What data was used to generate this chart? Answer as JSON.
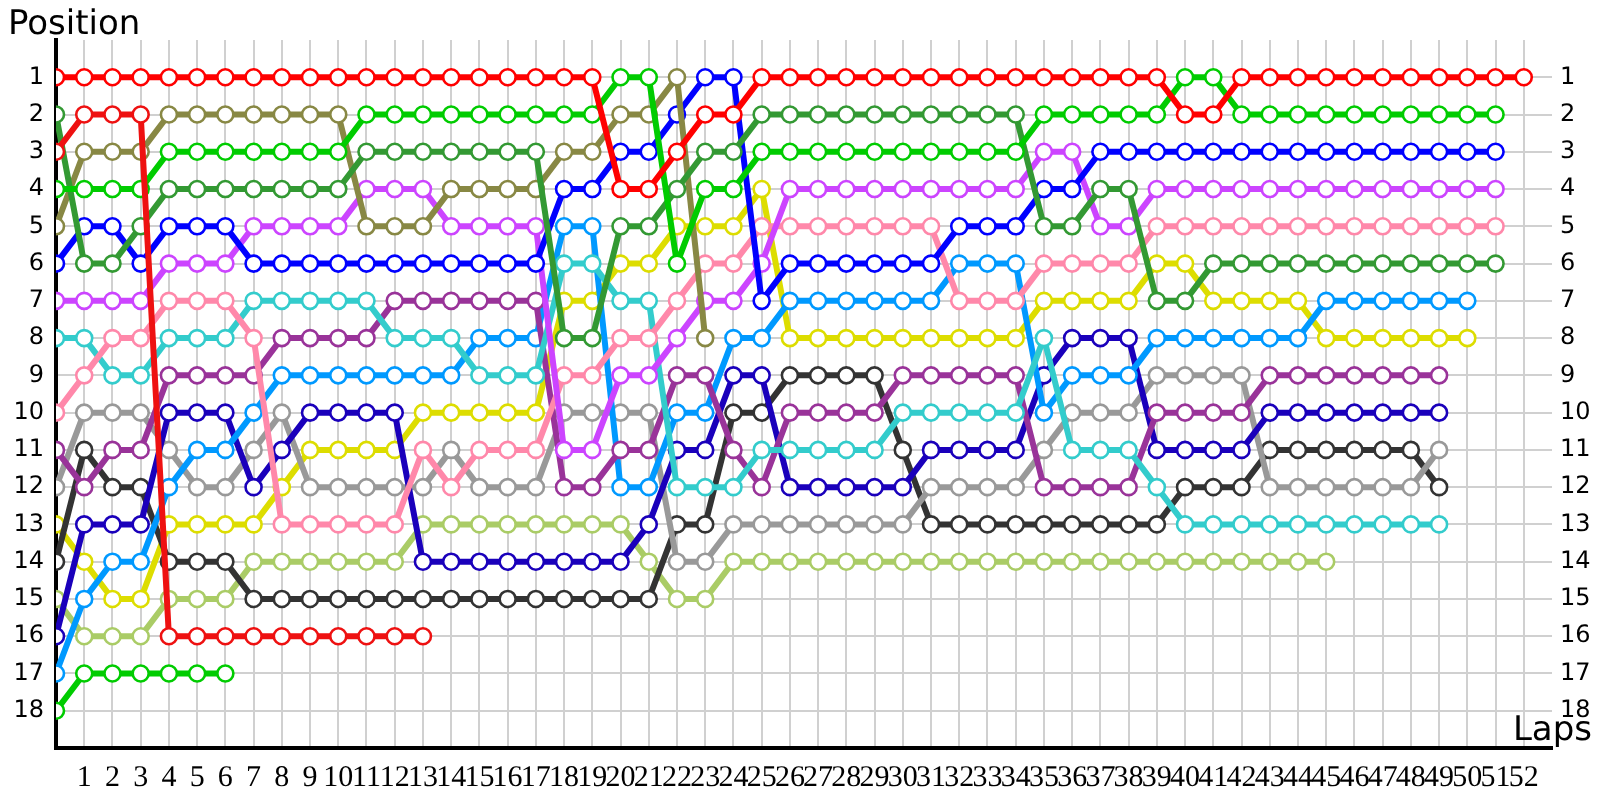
{
  "chart_data": {
    "type": "line",
    "xlabel": "Laps",
    "ylabel": "Position",
    "x": [
      0,
      1,
      2,
      3,
      4,
      5,
      6,
      7,
      8,
      9,
      10,
      11,
      12,
      13,
      14,
      15,
      16,
      17,
      18,
      19,
      20,
      21,
      22,
      23,
      24,
      25,
      26,
      27,
      28,
      29,
      30,
      31,
      32,
      33,
      34,
      35,
      36,
      37,
      38,
      39,
      40,
      41,
      42,
      43,
      44,
      45,
      46,
      47,
      48,
      49,
      50,
      51,
      52
    ],
    "xlim": [
      0,
      53
    ],
    "xticks": [
      1,
      2,
      3,
      4,
      5,
      6,
      7,
      8,
      9,
      10,
      11,
      12,
      13,
      14,
      15,
      16,
      17,
      18,
      19,
      20,
      21,
      22,
      23,
      24,
      25,
      26,
      27,
      28,
      29,
      30,
      31,
      32,
      33,
      34,
      35,
      36,
      37,
      38,
      39,
      40,
      41,
      42,
      43,
      44,
      45,
      46,
      47,
      48,
      49,
      50,
      51,
      52
    ],
    "ylim": [
      19,
      0
    ],
    "yticks": [
      1,
      2,
      3,
      4,
      5,
      6,
      7,
      8,
      9,
      10,
      11,
      12,
      13,
      14,
      15,
      16,
      17,
      18
    ],
    "y2lim": [
      19,
      0
    ],
    "y2ticks": [
      1,
      2,
      3,
      4,
      5,
      6,
      7,
      8,
      9,
      10,
      11,
      12,
      13,
      14,
      15,
      16,
      17,
      18
    ],
    "grid": true,
    "legend": false,
    "marker": "circle",
    "line_style": "solid",
    "series": [
      {
        "color": "#ff0000",
        "values": [
          1,
          1,
          1,
          1,
          1,
          1,
          1,
          1,
          1,
          1,
          1,
          1,
          1,
          1,
          1,
          1,
          1,
          1,
          1,
          1,
          4,
          4,
          3,
          2,
          2,
          1,
          1,
          1,
          1,
          1,
          1,
          1,
          1,
          1,
          1,
          1,
          1,
          1,
          1,
          1,
          2,
          2,
          1,
          1,
          1,
          1,
          1,
          1,
          1,
          1,
          1,
          1,
          1
        ]
      },
      {
        "color": "#ee1111",
        "values": [
          3,
          2,
          2,
          2,
          16,
          16,
          16,
          16,
          16,
          16,
          16,
          16,
          16,
          16,
          null,
          null,
          null,
          null,
          null,
          null,
          null,
          null,
          null,
          null,
          null,
          null,
          null,
          null,
          null,
          null,
          null,
          null,
          null,
          null,
          null,
          null,
          null,
          null,
          null,
          null,
          null,
          null,
          null,
          null,
          null,
          null,
          null,
          null,
          null,
          null,
          null,
          null,
          null
        ]
      },
      {
        "color": "#00cc00",
        "values": [
          4,
          4,
          4,
          4,
          3,
          3,
          3,
          3,
          3,
          3,
          3,
          2,
          2,
          2,
          2,
          2,
          2,
          2,
          2,
          2,
          1,
          1,
          6,
          4,
          4,
          3,
          3,
          3,
          3,
          3,
          3,
          3,
          3,
          3,
          3,
          2,
          2,
          2,
          2,
          2,
          1,
          1,
          2,
          2,
          2,
          2,
          2,
          2,
          2,
          2,
          2,
          2,
          null
        ]
      },
      {
        "color": "#339933",
        "values": [
          2,
          6,
          6,
          5,
          4,
          4,
          4,
          4,
          4,
          4,
          4,
          3,
          3,
          3,
          3,
          3,
          3,
          3,
          8,
          8,
          5,
          5,
          4,
          3,
          3,
          2,
          2,
          2,
          2,
          2,
          2,
          2,
          2,
          2,
          2,
          5,
          5,
          4,
          4,
          7,
          7,
          6,
          6,
          6,
          6,
          6,
          6,
          6,
          6,
          6,
          6,
          6,
          null
        ]
      },
      {
        "color": "#888844",
        "values": [
          5,
          3,
          3,
          3,
          2,
          2,
          2,
          2,
          2,
          2,
          2,
          5,
          5,
          5,
          4,
          4,
          4,
          4,
          3,
          3,
          2,
          2,
          1,
          8,
          null,
          null,
          null,
          null,
          null,
          null,
          null,
          null,
          null,
          null,
          null,
          null,
          null,
          null,
          null,
          null,
          null,
          null,
          null,
          null,
          null,
          null,
          null,
          null,
          null,
          null,
          null,
          null,
          null
        ]
      },
      {
        "color": "#0000ff",
        "values": [
          6,
          5,
          5,
          6,
          5,
          5,
          5,
          6,
          6,
          6,
          6,
          6,
          6,
          6,
          6,
          6,
          6,
          6,
          4,
          4,
          3,
          3,
          2,
          1,
          1,
          7,
          6,
          6,
          6,
          6,
          6,
          6,
          5,
          5,
          5,
          4,
          4,
          3,
          3,
          3,
          3,
          3,
          3,
          3,
          3,
          3,
          3,
          3,
          3,
          3,
          3,
          3,
          null
        ]
      },
      {
        "color": "#cc44ff",
        "values": [
          7,
          7,
          7,
          7,
          6,
          6,
          6,
          5,
          5,
          5,
          5,
          4,
          4,
          4,
          5,
          5,
          5,
          5,
          11,
          11,
          9,
          9,
          8,
          7,
          7,
          6,
          4,
          4,
          4,
          4,
          4,
          4,
          4,
          4,
          4,
          3,
          3,
          5,
          5,
          4,
          4,
          4,
          4,
          4,
          4,
          4,
          4,
          4,
          4,
          4,
          4,
          4,
          null
        ]
      },
      {
        "color": "#ff88aa",
        "values": [
          10,
          9,
          8,
          8,
          7,
          7,
          7,
          8,
          13,
          13,
          13,
          13,
          13,
          11,
          12,
          11,
          11,
          11,
          9,
          9,
          8,
          8,
          7,
          6,
          6,
          5,
          5,
          5,
          5,
          5,
          5,
          5,
          7,
          7,
          7,
          6,
          6,
          6,
          6,
          5,
          5,
          5,
          5,
          5,
          5,
          5,
          5,
          5,
          5,
          5,
          5,
          5,
          null
        ]
      },
      {
        "color": "#33cccc",
        "values": [
          8,
          8,
          9,
          9,
          8,
          8,
          8,
          7,
          7,
          7,
          7,
          7,
          8,
          8,
          8,
          9,
          9,
          9,
          6,
          6,
          7,
          7,
          12,
          12,
          12,
          11,
          11,
          11,
          11,
          11,
          10,
          10,
          10,
          10,
          10,
          8,
          11,
          11,
          11,
          12,
          13,
          13,
          13,
          13,
          13,
          13,
          13,
          13,
          13,
          13,
          null,
          null,
          null
        ]
      },
      {
        "color": "#993399",
        "values": [
          11,
          12,
          11,
          11,
          9,
          9,
          9,
          9,
          8,
          8,
          8,
          8,
          7,
          7,
          7,
          7,
          7,
          7,
          12,
          12,
          11,
          11,
          9,
          9,
          11,
          12,
          10,
          10,
          10,
          10,
          9,
          9,
          9,
          9,
          9,
          12,
          12,
          12,
          12,
          10,
          10,
          10,
          10,
          9,
          9,
          9,
          9,
          9,
          9,
          9,
          null,
          null,
          null
        ]
      },
      {
        "color": "#0099ff",
        "values": [
          17,
          15,
          14,
          14,
          12,
          11,
          11,
          10,
          9,
          9,
          9,
          9,
          9,
          9,
          9,
          8,
          8,
          8,
          5,
          5,
          12,
          12,
          10,
          10,
          8,
          8,
          7,
          7,
          7,
          7,
          7,
          7,
          6,
          6,
          6,
          10,
          9,
          9,
          9,
          8,
          8,
          8,
          8,
          8,
          8,
          7,
          7,
          7,
          7,
          7,
          7,
          null,
          null
        ]
      },
      {
        "color": "#1a00bb",
        "values": [
          16,
          13,
          13,
          13,
          10,
          10,
          10,
          12,
          11,
          10,
          10,
          10,
          10,
          14,
          14,
          14,
          14,
          14,
          14,
          14,
          14,
          13,
          11,
          11,
          9,
          9,
          12,
          12,
          12,
          12,
          12,
          11,
          11,
          11,
          11,
          9,
          8,
          8,
          8,
          11,
          11,
          11,
          11,
          10,
          10,
          10,
          10,
          10,
          10,
          10,
          null,
          null,
          null
        ]
      },
      {
        "color": "#999999",
        "values": [
          12,
          10,
          10,
          10,
          11,
          12,
          12,
          11,
          10,
          12,
          12,
          12,
          12,
          12,
          11,
          12,
          12,
          12,
          10,
          10,
          10,
          10,
          14,
          14,
          13,
          13,
          13,
          13,
          13,
          13,
          13,
          12,
          12,
          12,
          12,
          11,
          10,
          10,
          10,
          9,
          9,
          9,
          9,
          12,
          12,
          12,
          12,
          12,
          12,
          11,
          null,
          null,
          null
        ]
      },
      {
        "color": "#333333",
        "values": [
          14,
          11,
          12,
          12,
          14,
          14,
          14,
          15,
          15,
          15,
          15,
          15,
          15,
          15,
          15,
          15,
          15,
          15,
          15,
          15,
          15,
          15,
          13,
          13,
          10,
          10,
          9,
          9,
          9,
          9,
          11,
          13,
          13,
          13,
          13,
          13,
          13,
          13,
          13,
          13,
          12,
          12,
          12,
          11,
          11,
          11,
          11,
          11,
          11,
          12,
          null,
          null,
          null
        ]
      },
      {
        "color": "#dddd00",
        "values": [
          13,
          14,
          15,
          15,
          13,
          13,
          13,
          13,
          12,
          11,
          11,
          11,
          11,
          10,
          10,
          10,
          10,
          10,
          7,
          7,
          6,
          6,
          5,
          5,
          5,
          4,
          8,
          8,
          8,
          8,
          8,
          8,
          8,
          8,
          8,
          7,
          7,
          7,
          7,
          6,
          6,
          7,
          7,
          7,
          7,
          8,
          8,
          8,
          8,
          8,
          8,
          null,
          null
        ]
      },
      {
        "color": "#aacc66",
        "values": [
          15,
          16,
          16,
          16,
          15,
          15,
          15,
          14,
          14,
          14,
          14,
          14,
          14,
          13,
          13,
          13,
          13,
          13,
          13,
          13,
          13,
          14,
          15,
          15,
          14,
          14,
          14,
          14,
          14,
          14,
          14,
          14,
          14,
          14,
          14,
          14,
          14,
          14,
          14,
          14,
          14,
          14,
          14,
          14,
          14,
          14,
          null,
          null,
          null,
          null,
          null,
          null,
          null
        ]
      },
      {
        "color": "#00cc00",
        "values": [
          18,
          17,
          17,
          17,
          17,
          17,
          17,
          null,
          null,
          null,
          null,
          null,
          null,
          null,
          null,
          null,
          null,
          null,
          null,
          null,
          null,
          null,
          null,
          null,
          null,
          null,
          null,
          null,
          null,
          null,
          null,
          null,
          null,
          null,
          null,
          null,
          null,
          null,
          null,
          null,
          null,
          null,
          null,
          null,
          null,
          null,
          null,
          null,
          null,
          null,
          null,
          null,
          null
        ]
      }
    ]
  }
}
